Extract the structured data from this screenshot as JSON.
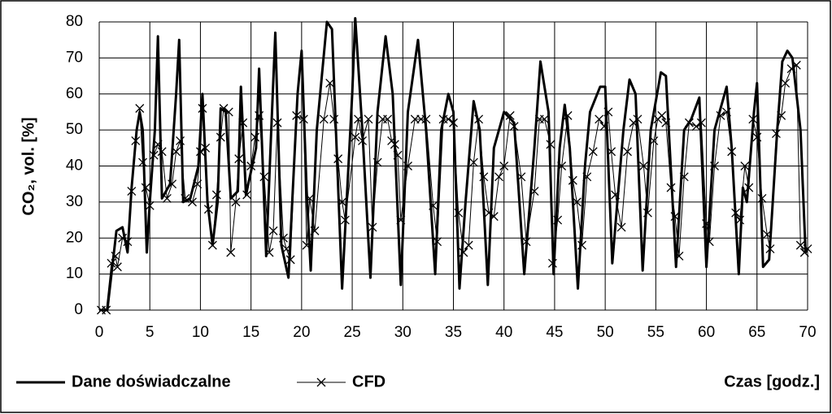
{
  "chart_data": {
    "type": "line",
    "y_label": "CO₂, vol. [%]",
    "x_label": "Czas [godz.]",
    "xlim": [
      0,
      70
    ],
    "ylim": [
      0,
      80
    ],
    "xticks": [
      0,
      5,
      10,
      15,
      20,
      25,
      30,
      35,
      40,
      45,
      50,
      55,
      60,
      65,
      70
    ],
    "yticks": [
      0,
      10,
      20,
      30,
      40,
      50,
      60,
      70,
      80
    ],
    "grid": true,
    "series": [
      {
        "name": "Dane doświadczalne",
        "color": "#000000",
        "x": [
          0,
          0.8,
          1.7,
          2.3,
          2.8,
          3.2,
          3.7,
          4.0,
          4.3,
          4.7,
          5.0,
          5.5,
          5.8,
          6.2,
          7.0,
          7.6,
          7.9,
          8.3,
          9.0,
          9.8,
          10.2,
          10.7,
          11.2,
          11.7,
          12.0,
          12.5,
          13.0,
          13.7,
          14.0,
          14.5,
          15.5,
          15.8,
          16.5,
          17.0,
          17.4,
          18.0,
          18.7,
          19.6,
          20.0,
          20.5,
          20.9,
          21.5,
          22.5,
          23.0,
          24.0,
          25.0,
          25.3,
          26.0,
          26.8,
          27.5,
          28.3,
          29.0,
          29.8,
          30.5,
          31.5,
          32.3,
          33.2,
          33.8,
          34.5,
          35.0,
          35.6,
          36.2,
          37.0,
          37.6,
          38.4,
          39.0,
          40.0,
          41.0,
          42.0,
          43.0,
          43.6,
          44.4,
          44.9,
          45.5,
          46.0,
          46.5,
          47.3,
          48.0,
          48.5,
          49.5,
          50.0,
          50.7,
          51.2,
          51.8,
          52.4,
          53.0,
          53.7,
          54.5,
          55.5,
          56.0,
          57.0,
          57.8,
          58.5,
          59.3,
          60.0,
          60.8,
          62.0,
          62.5,
          63.2,
          63.6,
          64.0,
          64.7,
          65.0,
          65.6,
          66.2,
          67.0,
          67.5,
          68.0,
          68.5,
          69.3,
          69.8,
          70.0
        ],
        "values": [
          0,
          0,
          22,
          23,
          16,
          34,
          50,
          55,
          50,
          16,
          30,
          50,
          76,
          31,
          35,
          60,
          75,
          30,
          31,
          40,
          60,
          30,
          18,
          30,
          56,
          55,
          31,
          33,
          62,
          32,
          45,
          67,
          15,
          50,
          77,
          18,
          9,
          60,
          72,
          33,
          11,
          50,
          80,
          78,
          6,
          60,
          81,
          50,
          9,
          55,
          76,
          60,
          7,
          55,
          75,
          50,
          10,
          50,
          60,
          55,
          6,
          30,
          58,
          50,
          7,
          45,
          55,
          52,
          10,
          45,
          69,
          55,
          10,
          45,
          57,
          45,
          6,
          40,
          55,
          62,
          62,
          13,
          30,
          50,
          64,
          60,
          11,
          50,
          66,
          65,
          12,
          50,
          53,
          59,
          12,
          50,
          62,
          45,
          10,
          34,
          30,
          55,
          63,
          12,
          14,
          50,
          69,
          72,
          70,
          50,
          16,
          17
        ]
      },
      {
        "name": "CFD",
        "color": "#000000",
        "marker": "x",
        "x": [
          0.2,
          0.7,
          1.2,
          1.6,
          1.8,
          2.3,
          2.8,
          3.2,
          3.6,
          4.0,
          4.3,
          4.6,
          5.0,
          5.4,
          5.8,
          6.2,
          6.7,
          7.2,
          7.6,
          8.0,
          8.5,
          9.2,
          9.7,
          10.0,
          10.2,
          10.5,
          10.8,
          11.2,
          11.6,
          12.0,
          12.3,
          12.8,
          13.0,
          13.5,
          13.8,
          14.2,
          14.6,
          15.0,
          15.4,
          15.8,
          16.3,
          16.8,
          17.2,
          17.6,
          18.2,
          18.5,
          18.9,
          19.5,
          20.2,
          20.5,
          20.8,
          21.3,
          22.2,
          22.8,
          23.2,
          23.6,
          24.0,
          24.3,
          25.3,
          25.6,
          26.0,
          26.6,
          27.0,
          27.5,
          28.0,
          28.5,
          28.9,
          29.2,
          29.5,
          29.8,
          30.5,
          31.2,
          31.8,
          32.3,
          33.0,
          33.4,
          34.0,
          34.5,
          35.0,
          35.5,
          36.0,
          36.5,
          37.0,
          37.5,
          38.0,
          38.5,
          39.0,
          39.5,
          40.0,
          40.6,
          41.0,
          41.7,
          42.2,
          43.0,
          43.5,
          44.0,
          44.6,
          44.8,
          45.3,
          45.7,
          46.3,
          46.8,
          47.2,
          47.7,
          48.2,
          48.8,
          49.4,
          49.9,
          50.3,
          50.6,
          51.0,
          51.6,
          52.2,
          52.8,
          53.2,
          53.8,
          54.2,
          54.8,
          55.2,
          55.6,
          56.0,
          56.5,
          56.9,
          57.3,
          57.8,
          58.3,
          59.0,
          59.5,
          60.0,
          60.3,
          60.8,
          61.4,
          62.0,
          62.5,
          62.9,
          63.3,
          63.8,
          64.2,
          64.6,
          65.0,
          65.5,
          66.0,
          66.3,
          66.9,
          67.4,
          67.8,
          68.4,
          68.9,
          69.3,
          69.7,
          70.0
        ],
        "values": [
          0,
          0,
          13,
          15,
          12,
          20,
          19,
          33,
          47,
          56,
          41,
          34,
          29,
          43,
          46,
          44,
          31,
          35,
          44,
          47,
          31,
          30,
          35,
          44,
          56,
          45,
          28,
          18,
          32,
          48,
          56,
          55,
          16,
          30,
          42,
          52,
          32,
          40,
          48,
          54,
          37,
          16,
          22,
          52,
          20,
          17,
          14,
          54,
          53,
          18,
          31,
          22,
          53,
          63,
          53,
          42,
          30,
          25,
          48,
          53,
          47,
          53,
          23,
          41,
          53,
          53,
          47,
          46,
          43,
          25,
          40,
          53,
          53,
          53,
          29,
          19,
          53,
          53,
          52,
          27,
          16,
          18,
          41,
          53,
          37,
          27,
          26,
          37,
          40,
          54,
          51,
          37,
          19,
          33,
          53,
          53,
          46,
          13,
          25,
          40,
          54,
          36,
          30,
          18,
          37,
          44,
          53,
          51,
          55,
          44,
          32,
          23,
          44,
          52,
          53,
          40,
          27,
          47,
          53,
          54,
          52,
          34,
          26,
          15,
          37,
          52,
          51,
          52,
          24,
          19,
          40,
          54,
          55,
          44,
          27,
          25,
          40,
          34,
          53,
          48,
          31,
          21,
          17,
          49,
          54,
          63,
          67,
          68,
          18,
          16,
          17
        ]
      }
    ]
  }
}
